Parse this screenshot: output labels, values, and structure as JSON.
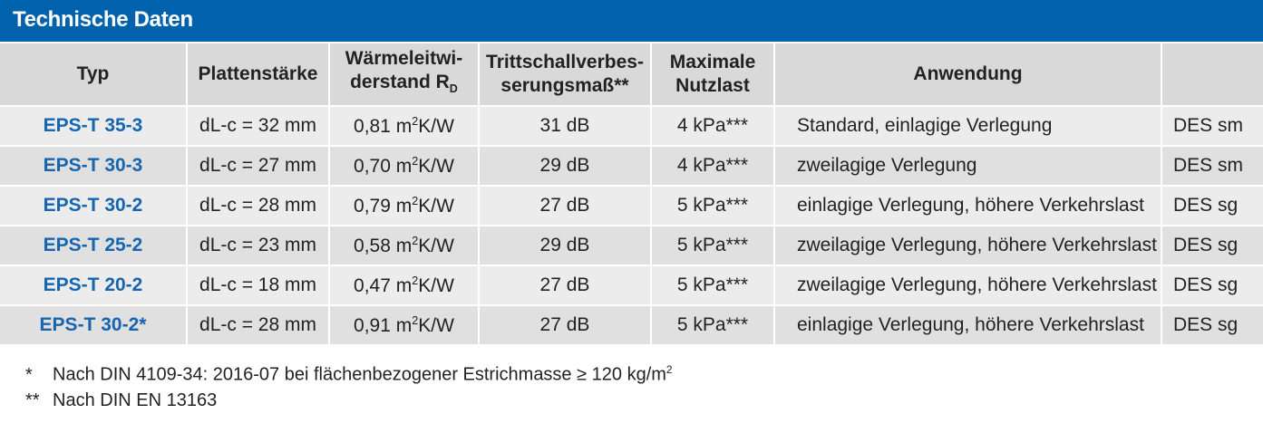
{
  "title": "Technische Daten",
  "headers": {
    "typ": "Typ",
    "plattenstaerke": "Plattenstärke",
    "waerme_line1": "Wärmeleitwi-",
    "waerme_line2": "derstand R",
    "waerme_sub": "D",
    "tritt_line1": "Trittschallverbes-",
    "tritt_line2": "serungsmaß**",
    "nutz_line1": "Maximale",
    "nutz_line2": "Nutzlast",
    "anwendung": "Anwendung",
    "des": ""
  },
  "rows": [
    {
      "typ": "EPS-T 35-3",
      "dicke": "dL-c = 32 mm",
      "r_val": "0,81 m",
      "r_sup": "2",
      "r_unit": "K/W",
      "tritt": "31 dB",
      "last": "4 kPa***",
      "anw": "Standard, einlagige Verlegung",
      "des": "DES sm"
    },
    {
      "typ": "EPS-T 30-3",
      "dicke": "dL-c = 27 mm",
      "r_val": "0,70 m",
      "r_sup": "2",
      "r_unit": "K/W",
      "tritt": "29 dB",
      "last": "4 kPa***",
      "anw": "zweilagige Verlegung",
      "des": "DES sm"
    },
    {
      "typ": "EPS-T 30-2",
      "dicke": "dL-c = 28 mm",
      "r_val": "0,79 m",
      "r_sup": "2",
      "r_unit": "K/W",
      "tritt": "27 dB",
      "last": "5 kPa***",
      "anw": "einlagige Verlegung, höhere Verkehrslast",
      "des": "DES sg"
    },
    {
      "typ": "EPS-T 25-2",
      "dicke": "dL-c = 23 mm",
      "r_val": "0,58 m",
      "r_sup": "2",
      "r_unit": "K/W",
      "tritt": "29 dB",
      "last": "5 kPa***",
      "anw": "zweilagige Verlegung, höhere Verkehrslast",
      "des": "DES sg"
    },
    {
      "typ": "EPS-T 20-2",
      "dicke": "dL-c = 18 mm",
      "r_val": "0,47 m",
      "r_sup": "2",
      "r_unit": "K/W",
      "tritt": "27 dB",
      "last": "5 kPa***",
      "anw": "zweilagige Verlegung, höhere Verkehrslast",
      "des": "DES sg"
    },
    {
      "typ": "EPS-T 30-2*",
      "dicke": "dL-c = 28 mm",
      "r_val": "0,91 m",
      "r_sup": "2",
      "r_unit": "K/W",
      "tritt": "27 dB",
      "last": "5 kPa***",
      "anw": "einlagige Verlegung, höhere Verkehrslast",
      "des": "DES sg"
    }
  ],
  "footnotes": {
    "n1_mark": "*",
    "n1_text": "Nach DIN 4109-34: 2016-07 bei flächenbezogener Estrichmasse ≥ 120 kg/m",
    "n1_sup": "2",
    "n2_mark": "**",
    "n2_text": "Nach DIN EN 13163"
  },
  "colors": {
    "title_bar": "#0061ad",
    "type_text": "#1565b0",
    "header_bg": "#d9d9d9",
    "row_odd": "#ececec",
    "row_even": "#e0e0e0"
  }
}
